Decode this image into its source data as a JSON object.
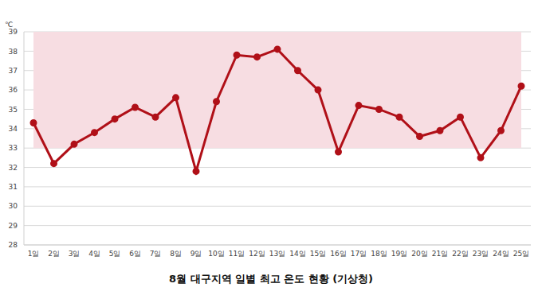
{
  "chart_data": {
    "type": "line",
    "title": "8월 대구지역 일별 최고 온도 현황 (기상청)",
    "y_label": "℃",
    "categories": [
      "1일",
      "2일",
      "3일",
      "4일",
      "5일",
      "6일",
      "7일",
      "8일",
      "9일",
      "10일",
      "11일",
      "12일",
      "13일",
      "14일",
      "15일",
      "16일",
      "17일",
      "18일",
      "19일",
      "20일",
      "21일",
      "22일",
      "23일",
      "24일",
      "25일"
    ],
    "values": [
      34.3,
      32.2,
      33.2,
      33.8,
      34.5,
      35.1,
      34.6,
      35.6,
      31.8,
      35.4,
      37.8,
      37.7,
      38.1,
      37.0,
      36.0,
      32.8,
      35.2,
      35.0,
      34.6,
      33.6,
      33.9,
      34.6,
      32.5,
      33.9,
      36.2
    ],
    "color": "#b01018",
    "marker": "circle",
    "ylim": [
      28,
      39
    ],
    "yticks": [
      28,
      29,
      30,
      31,
      32,
      33,
      34,
      35,
      36,
      37,
      38,
      39
    ],
    "grid": true,
    "shaded_range": [
      33,
      39
    ]
  }
}
